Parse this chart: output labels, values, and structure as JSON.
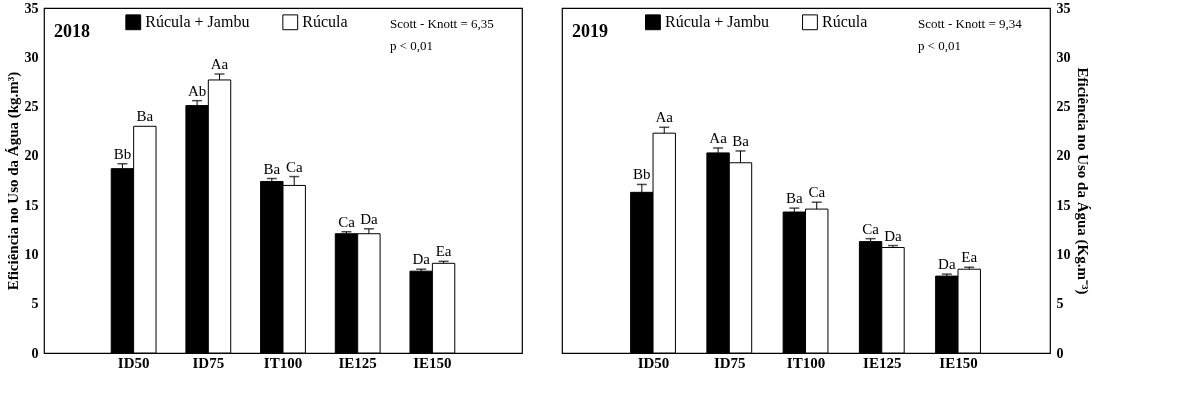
{
  "chart_data": [
    {
      "type": "bar",
      "title": "2018",
      "ylabel": "Eficiência no Uso da Água (kg.m³)",
      "categories": [
        "ID50",
        "ID75",
        "IT100",
        "IE125",
        "IE150"
      ],
      "ylim": [
        0,
        35
      ],
      "yticks": [
        0,
        5,
        10,
        15,
        20,
        25,
        30,
        35
      ],
      "grid": false,
      "legend": "top",
      "annotations": [
        "Scott - Knott  = 6,35",
        "p < 0,01"
      ],
      "series": [
        {
          "name": "Rúcula + Jambu",
          "color": "#000000",
          "values": [
            18.7,
            25.1,
            17.4,
            12.1,
            8.3
          ],
          "errors": [
            0.5,
            0.5,
            0.3,
            0.2,
            0.2
          ],
          "value_labels": [
            "Bb",
            "Ab",
            "Ba",
            "Ca",
            "Da"
          ]
        },
        {
          "name": "Rúcula",
          "color": "#ffffff",
          "values": [
            23.0,
            27.7,
            17.0,
            12.1,
            9.1
          ],
          "errors": [
            null,
            0.6,
            0.9,
            0.5,
            0.2
          ],
          "value_labels": [
            "Ba",
            "Aa",
            "Ca",
            "Da",
            "Ea"
          ]
        }
      ]
    },
    {
      "type": "bar",
      "title": "2019",
      "y2label": "Eficiência no Uso da Água (Kg.m⁻³)",
      "categories": [
        "ID50",
        "ID75",
        "IT100",
        "IE125",
        "IE150"
      ],
      "y2lim": [
        0,
        35
      ],
      "y2ticks": [
        0,
        5,
        10,
        15,
        20,
        25,
        30,
        35
      ],
      "grid": false,
      "legend": "top",
      "annotations": [
        "Scott - Knott = 9,34",
        "p < 0,01"
      ],
      "series": [
        {
          "name": "Rúcula + Jambu",
          "color": "#000000",
          "axis": "y2",
          "values": [
            16.3,
            20.3,
            14.3,
            11.3,
            7.8
          ],
          "errors": [
            0.8,
            0.5,
            0.4,
            0.3,
            0.2
          ],
          "value_labels": [
            "Bb",
            "Aa",
            "Ba",
            "Ca",
            "Da"
          ]
        },
        {
          "name": "Rúcula",
          "color": "#ffffff",
          "axis": "y2",
          "values": [
            22.3,
            19.3,
            14.6,
            10.7,
            8.5
          ],
          "errors": [
            0.6,
            1.2,
            0.7,
            0.2,
            0.2
          ],
          "value_labels": [
            "Aa",
            "Ba",
            "Ca",
            "Da",
            "Ea"
          ]
        }
      ]
    }
  ]
}
